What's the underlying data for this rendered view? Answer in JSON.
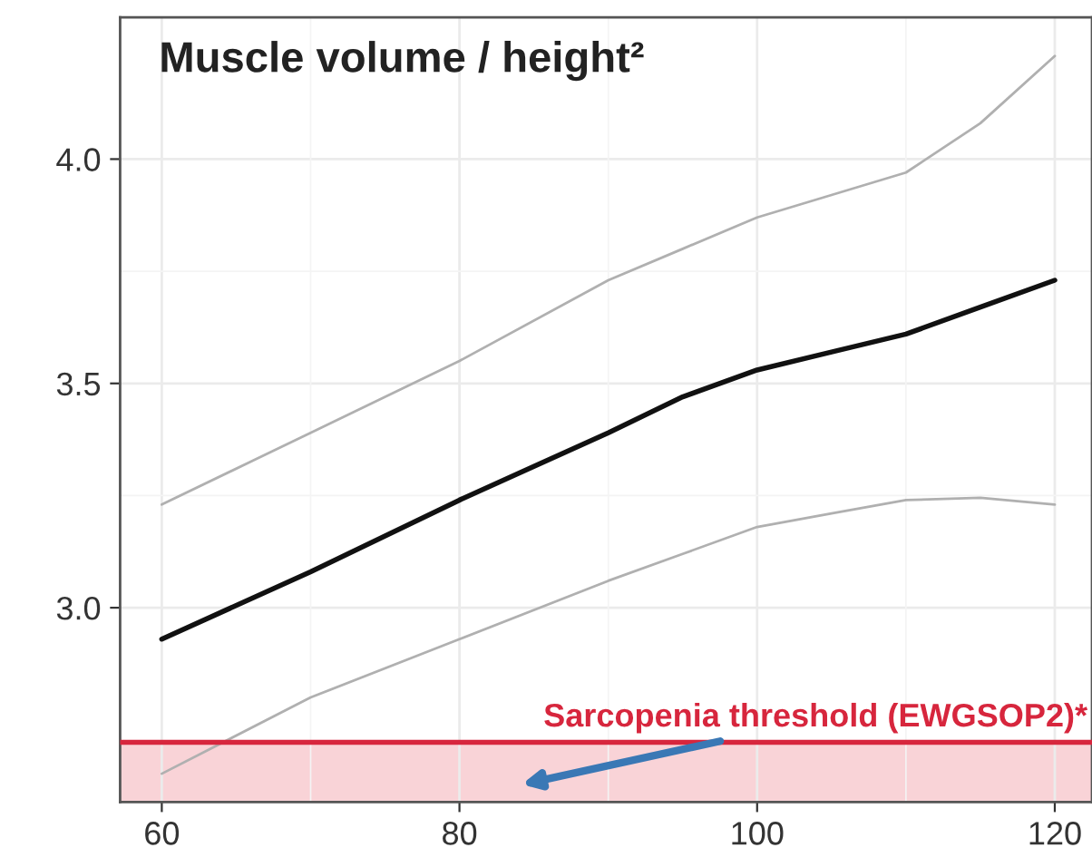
{
  "chart_data": {
    "type": "line",
    "title": "Muscle volume / height²",
    "x": [
      60,
      70,
      80,
      90,
      95,
      100,
      105,
      110,
      115,
      120
    ],
    "series": [
      {
        "color": "#b0b0b0",
        "values": [
          3.23,
          3.39,
          3.55,
          3.73,
          3.8,
          3.87,
          3.92,
          3.97,
          4.08,
          4.23
        ]
      },
      {
        "color": "#111111",
        "values": [
          2.93,
          3.08,
          3.24,
          3.39,
          3.47,
          3.53,
          3.57,
          3.61,
          3.67,
          3.73
        ]
      },
      {
        "color": "#b0b0b0",
        "values": [
          2.63,
          2.8,
          2.93,
          3.06,
          3.12,
          3.18,
          3.21,
          3.24,
          3.245,
          3.23
        ]
      }
    ],
    "xlim": [
      57.2,
      122.5
    ],
    "ylim": [
      2.567,
      4.316
    ],
    "xticks": [
      60,
      80,
      100,
      120
    ],
    "yticks": [
      {
        "value": 3,
        "label": "3.0"
      },
      3.5,
      {
        "value": 4,
        "label": "4.0"
      }
    ],
    "ref_lines": [
      {
        "axis": "y",
        "value": 2.7,
        "label": "Sarcopenia threshold (EWGSOP2)*",
        "color": "#d7263d"
      }
    ],
    "bands": [
      {
        "axis": "y",
        "from": 2.567,
        "to": 2.7,
        "color": "#f9d3d7"
      }
    ],
    "grid": true,
    "marker": "none",
    "line_style": "solid"
  }
}
